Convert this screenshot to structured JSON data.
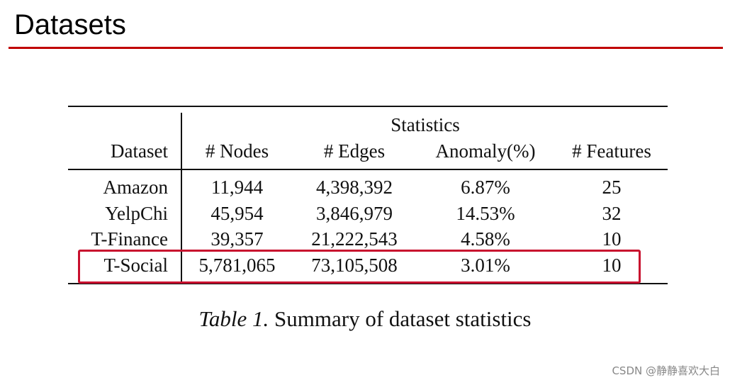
{
  "slide": {
    "title": "Datasets"
  },
  "table": {
    "group_header": "Statistics",
    "columns": [
      "Dataset",
      "# Nodes",
      "# Edges",
      "Anomaly(%)",
      "# Features"
    ],
    "rows": [
      [
        "Amazon",
        "11,944",
        "4,398,392",
        "6.87%",
        "25"
      ],
      [
        "YelpChi",
        "45,954",
        "3,846,979",
        "14.53%",
        "32"
      ],
      [
        "T-Finance",
        "39,357",
        "21,222,543",
        "4.58%",
        "10"
      ],
      [
        "T-Social",
        "5,781,065",
        "73,105,508",
        "3.01%",
        "10"
      ]
    ],
    "caption_label": "Table 1.",
    "caption_text": "Summary of dataset statistics",
    "highlight_color": "#c8102e"
  },
  "watermark": "CSDN @静静喜欢大白"
}
